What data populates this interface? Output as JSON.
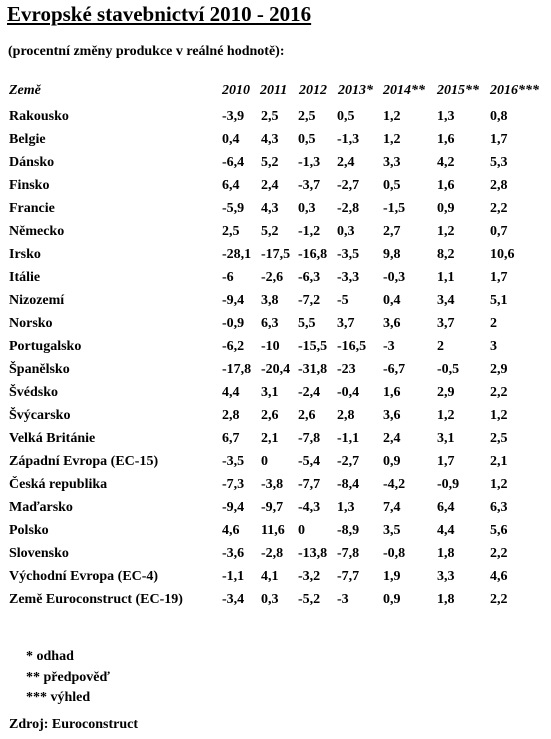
{
  "title": "Evropské stavebnictví 2010 - 2016",
  "subtitle": "(procentní změny produkce v reálné hodnotě):",
  "table": {
    "headers": [
      "Země",
      "2010",
      "2011",
      "2012",
      "2013*",
      "2014**",
      "2015**",
      "2016***"
    ],
    "rows": [
      [
        "Rakousko",
        "-3,9",
        "2,5",
        "2,5",
        "0,5",
        "1,2",
        "1,3",
        "0,8"
      ],
      [
        "Belgie",
        "0,4",
        "4,3",
        "0,5",
        "-1,3",
        "1,2",
        "1,6",
        "1,7"
      ],
      [
        "Dánsko",
        "-6,4",
        "5,2",
        "-1,3",
        "2,4",
        "3,3",
        "4,2",
        "5,3"
      ],
      [
        "Finsko",
        "6,4",
        "2,4",
        "-3,7",
        "-2,7",
        "0,5",
        "1,6",
        "2,8"
      ],
      [
        "Francie",
        "-5,9",
        "4,3",
        "0,3",
        "-2,8",
        "-1,5",
        "0,9",
        "2,2"
      ],
      [
        "Německo",
        "2,5",
        "5,2",
        "-1,2",
        "0,3",
        "2,7",
        "1,2",
        "0,7"
      ],
      [
        "Irsko",
        "-28,1",
        "-17,5",
        "-16,8",
        "-3,5",
        "9,8",
        "8,2",
        "10,6"
      ],
      [
        "Itálie",
        "-6",
        "-2,6",
        "-6,3",
        "-3,3",
        "-0,3",
        "1,1",
        "1,7"
      ],
      [
        "Nizozemí",
        "-9,4",
        "3,8",
        "-7,2",
        "-5",
        "0,4",
        "3,4",
        "5,1"
      ],
      [
        "Norsko",
        "-0,9",
        "6,3",
        "5,5",
        "3,7",
        "3,6",
        "3,7",
        "2"
      ],
      [
        "Portugalsko",
        "-6,2",
        "-10",
        "-15,5",
        "-16,5",
        "-3",
        "2",
        "3"
      ],
      [
        "Španělsko",
        "-17,8",
        "-20,4",
        "-31,8",
        "-23",
        "-6,7",
        "-0,5",
        "2,9"
      ],
      [
        "Švédsko",
        "4,4",
        "3,1",
        "-2,4",
        "-0,4",
        "1,6",
        "2,9",
        "2,2"
      ],
      [
        "Švýcarsko",
        "2,8",
        "2,6",
        "2,6",
        "2,8",
        "3,6",
        "1,2",
        "1,2"
      ],
      [
        "Velká Británie",
        "6,7",
        "2,1",
        "-7,8",
        "-1,1",
        "2,4",
        "3,1",
        "2,5"
      ],
      [
        "Západní Evropa (EC-15)",
        "-3,5",
        "0",
        "-5,4",
        "-2,7",
        "0,9",
        "1,7",
        "2,1"
      ],
      [
        "Česká republika",
        "-7,3",
        "-3,8",
        "-7,7",
        "-8,4",
        "-4,2",
        "-0,9",
        "1,2"
      ],
      [
        "Maďarsko",
        "-9,4",
        "-9,7",
        "-4,3",
        "1,3",
        "7,4",
        "6,4",
        "6,3"
      ],
      [
        "Polsko",
        "4,6",
        "11,6",
        "0",
        "-8,9",
        "3,5",
        "4,4",
        "5,6"
      ],
      [
        "Slovensko",
        "-3,6",
        "-2,8",
        "-13,8",
        "-7,8",
        "-0,8",
        "1,8",
        "2,2"
      ],
      [
        "Východní Evropa (EC-4)",
        "-1,1",
        "4,1",
        "-3,2",
        "-7,7",
        "1,9",
        "3,3",
        "4,6"
      ],
      [
        "Země Euroconstruct (EC-19)",
        "-3,4",
        "0,3",
        "-5,2",
        "-3",
        "0,9",
        "1,8",
        "2,2"
      ]
    ]
  },
  "footnotes": [
    "* odhad",
    "** předpověď",
    "*** výhled"
  ],
  "source": "Zdroj: Euroconstruct"
}
